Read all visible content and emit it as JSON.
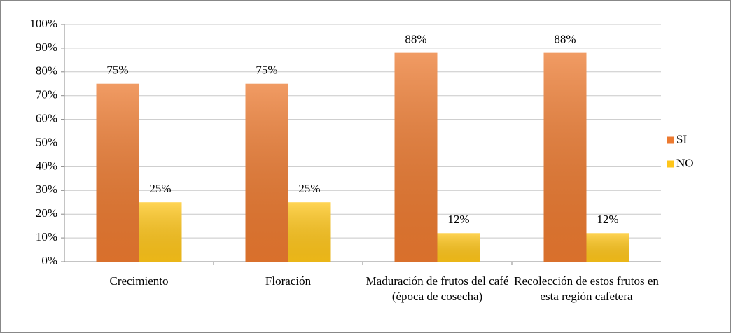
{
  "chart_data": {
    "type": "bar",
    "categories": [
      "Crecimiento",
      "Floración",
      "Maduración de frutos del café (época de cosecha)",
      "Recolección de estos frutos en esta región cafetera"
    ],
    "series": [
      {
        "name": "SI",
        "color": "#ec7a30",
        "values": [
          75,
          75,
          88,
          88
        ],
        "value_labels": [
          "75%",
          "75%",
          "88%",
          "88%"
        ]
      },
      {
        "name": "NO",
        "color": "#ffc61a",
        "values": [
          25,
          25,
          12,
          12
        ],
        "value_labels": [
          "25%",
          "25%",
          "12%",
          "12%"
        ]
      }
    ],
    "ylim": [
      0,
      100
    ],
    "yticks": [
      {
        "value": 0,
        "label": "0%"
      },
      {
        "value": 10,
        "label": "10%"
      },
      {
        "value": 20,
        "label": "20%"
      },
      {
        "value": 30,
        "label": "30%"
      },
      {
        "value": 40,
        "label": "40%"
      },
      {
        "value": 50,
        "label": "50%"
      },
      {
        "value": 60,
        "label": "60%"
      },
      {
        "value": 70,
        "label": "70%"
      },
      {
        "value": 80,
        "label": "80%"
      },
      {
        "value": 90,
        "label": "90%"
      },
      {
        "value": 100,
        "label": "100%"
      }
    ],
    "grid": true,
    "legend": "right"
  }
}
